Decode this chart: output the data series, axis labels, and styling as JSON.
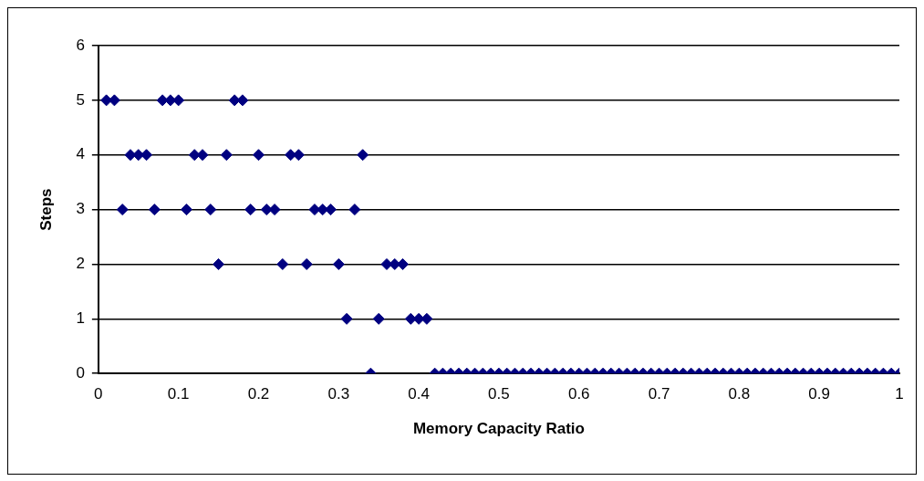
{
  "chart_data": {
    "type": "scatter",
    "xlabel": "Memory Capacity Ratio",
    "ylabel": "Steps",
    "marker": "diamond",
    "grid": "y",
    "legend": false,
    "xlim": [
      0,
      1
    ],
    "xticks": [
      0,
      0.1,
      0.2,
      0.3,
      0.4,
      0.5,
      0.6,
      0.7,
      0.8,
      0.9,
      1
    ],
    "ylim": [
      0,
      6
    ],
    "yticks": [
      0,
      1,
      2,
      3,
      4,
      5,
      6
    ],
    "series": [
      {
        "color": "#000080",
        "x": [
          0.01,
          0.02,
          0.03,
          0.04,
          0.05,
          0.06,
          0.07,
          0.08,
          0.09,
          0.1,
          0.11,
          0.12,
          0.13,
          0.14,
          0.15,
          0.16,
          0.17,
          0.18,
          0.19,
          0.2,
          0.21,
          0.22,
          0.23,
          0.24,
          0.25,
          0.26,
          0.27,
          0.28,
          0.29,
          0.3,
          0.31,
          0.32,
          0.33,
          0.34,
          0.35,
          0.36,
          0.37,
          0.38,
          0.39,
          0.4,
          0.41,
          0.42,
          0.43,
          0.44,
          0.45,
          0.46,
          0.47,
          0.48,
          0.49,
          0.5,
          0.51,
          0.52,
          0.53,
          0.54,
          0.55,
          0.56,
          0.57,
          0.58,
          0.59,
          0.6,
          0.61,
          0.62,
          0.63,
          0.64,
          0.65,
          0.66,
          0.67,
          0.68,
          0.69,
          0.7,
          0.71,
          0.72,
          0.73,
          0.74,
          0.75,
          0.76,
          0.77,
          0.78,
          0.79,
          0.8,
          0.81,
          0.82,
          0.83,
          0.84,
          0.85,
          0.86,
          0.87,
          0.88,
          0.89,
          0.9,
          0.91,
          0.92,
          0.93,
          0.94,
          0.95,
          0.96,
          0.97,
          0.98,
          0.99,
          1
        ],
        "values": [
          5,
          5,
          3,
          4,
          4,
          4,
          3,
          5,
          5,
          5,
          3,
          4,
          4,
          3,
          2,
          4,
          5,
          5,
          3,
          4,
          3,
          3,
          2,
          4,
          4,
          2,
          3,
          3,
          3,
          2,
          1,
          3,
          4,
          0,
          1,
          2,
          2,
          2,
          1,
          1,
          1,
          0,
          0,
          0,
          0,
          0,
          0,
          0,
          0,
          0,
          0,
          0,
          0,
          0,
          0,
          0,
          0,
          0,
          0,
          0,
          0,
          0,
          0,
          0,
          0,
          0,
          0,
          0,
          0,
          0,
          0,
          0,
          0,
          0,
          0,
          0,
          0,
          0,
          0,
          0,
          0,
          0,
          0,
          0,
          0,
          0,
          0,
          0,
          0,
          0,
          0,
          0,
          0,
          0,
          0,
          0,
          0,
          0,
          0,
          0
        ]
      }
    ]
  }
}
